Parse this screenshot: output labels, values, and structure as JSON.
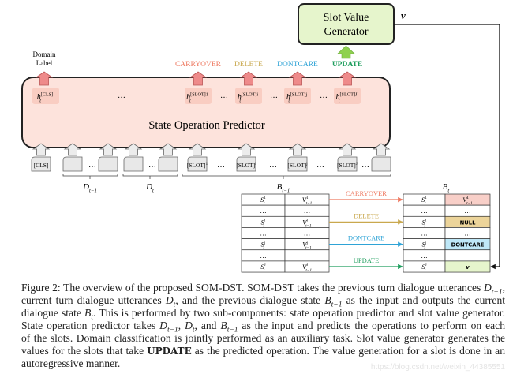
{
  "figure": {
    "generator_label_1": "Slot Value",
    "generator_label_2": "Generator",
    "value_symbol": "v",
    "domain_label_1": "Domain",
    "domain_label_2": "Label",
    "predictor_label": "State Operation Predictor",
    "operations": [
      {
        "label": "CARRYOVER",
        "color": "#ee7a62"
      },
      {
        "label": "DELETE",
        "color": "#c9a84e"
      },
      {
        "label": "DONTCARE",
        "color": "#2ea3d6"
      },
      {
        "label": "UPDATE",
        "color": "#1f9e5e"
      }
    ],
    "hidden_states": [
      {
        "b": "h",
        "sub": "t",
        "sup": "[CLS]"
      },
      {
        "b": "h",
        "sub": "t",
        "sup": "[SLOT]1"
      },
      {
        "b": "h",
        "sub": "t",
        "sup": "[SLOT]i"
      },
      {
        "b": "h",
        "sub": "t",
        "sup": "[SLOT]j"
      },
      {
        "b": "h",
        "sub": "t",
        "sup": "[SLOT]J"
      }
    ],
    "ellipsis": "…",
    "tokens": [
      "[CLS]",
      "",
      "…",
      "",
      "",
      "…",
      "",
      "[SLOT]1",
      "…",
      "[SLOT]i",
      "…",
      "[SLOT]j",
      "…",
      "[SLOT]J",
      "…",
      ""
    ],
    "segments": [
      {
        "b": "D",
        "sub": "t−1"
      },
      {
        "b": "D",
        "sub": "t"
      },
      {
        "b": "B",
        "sub": "t−1"
      }
    ],
    "state_prev_label": {
      "b": "B",
      "sub": "t−1"
    },
    "state_curr_label": {
      "b": "B",
      "sub": "t"
    },
    "prev_state_rows": [
      [
        {
          "b": "S",
          "sub": "t",
          "sup": "1"
        },
        {
          "b": "V",
          "sub": "t−1",
          "sup": "1"
        }
      ],
      [
        {
          "b": "…"
        },
        {
          "b": "…"
        }
      ],
      [
        {
          "b": "S",
          "sub": "t",
          "sup": "i"
        },
        {
          "b": "V",
          "sub": "t−1",
          "sup": "i"
        }
      ],
      [
        {
          "b": "…"
        },
        {
          "b": "…"
        }
      ],
      [
        {
          "b": "S",
          "sub": "t",
          "sup": "j"
        },
        {
          "b": "V",
          "sub": "t−1",
          "sup": "j"
        }
      ],
      [
        {
          "b": "…"
        },
        {
          "b": ""
        }
      ],
      [
        {
          "b": "S",
          "sub": "t",
          "sup": "J"
        },
        {
          "b": "V",
          "sub": "t−1",
          "sup": "J"
        }
      ]
    ],
    "curr_state_rows": [
      [
        {
          "b": "S",
          "sub": "t",
          "sup": "1"
        },
        {
          "b": "V",
          "sub": "t−1",
          "sup": "1",
          "fill": "#f8cfc8"
        }
      ],
      [
        {
          "b": "…"
        },
        {
          "b": "…"
        }
      ],
      [
        {
          "b": "S",
          "sub": "t",
          "sup": "i"
        },
        {
          "b": "NULL",
          "fill": "#ecd49a",
          "bold": true
        }
      ],
      [
        {
          "b": "…"
        },
        {
          "b": "…"
        }
      ],
      [
        {
          "b": "S",
          "sub": "t",
          "sup": "j"
        },
        {
          "b": "DONTCARE",
          "fill": "#bfe8f8",
          "bold": true
        }
      ],
      [
        {
          "b": "…"
        },
        {
          "b": ""
        }
      ],
      [
        {
          "b": "S",
          "sub": "t",
          "sup": "J"
        },
        {
          "b": "v",
          "fill": "#e6f5cc",
          "bold": true
        }
      ]
    ],
    "colors": {
      "generator_fill": "#e6f5cc",
      "predictor_fill": "#fde3dc",
      "hidden_fill": "#f9cdc2",
      "output_arrow": "#ee8a8a",
      "generator_arrow": "#8fd14f",
      "token_fill": "#e8e8e8"
    }
  },
  "caption": {
    "l1a": "Figure 2: The overview of the proposed SOM-DST. SOM-DST takes the previous turn dialogue utterances ",
    "l1m": {
      "b": "D",
      "sub": "t−1"
    },
    "l1b": ",",
    "l2a": "current turn dialogue utterances ",
    "l2m1": {
      "b": "D",
      "sub": "t"
    },
    "l2b": ", and the previous dialogue state ",
    "l2m2": {
      "b": "B",
      "sub": "t−1"
    },
    "l2c": " as the input and outputs the current",
    "l3a": "dialogue state ",
    "l3m": {
      "b": "B",
      "sub": "t"
    },
    "l3b": ". This is performed by two sub-components: state operation predictor and slot value generator.",
    "l4a": "State operation predictor takes ",
    "l4m1": {
      "b": "D",
      "sub": "t−1"
    },
    "l4b": ", ",
    "l4m2": {
      "b": "D",
      "sub": "t"
    },
    "l4c": ", and ",
    "l4m3": {
      "b": "B",
      "sub": "t−1"
    },
    "l4d": " as the input and predicts the operations to perform on each",
    "l5": "of the slots. Domain classification is jointly performed as an auxiliary task. Slot value generator generates the",
    "l6a": "values for the slots that take ",
    "l6b": "UPDATE",
    "l6c": " as the predicted operation. The value generation for a slot is done in an",
    "l7": "autoregressive manner."
  },
  "watermark": "https://blog.csdn.net/weixin_44385551"
}
